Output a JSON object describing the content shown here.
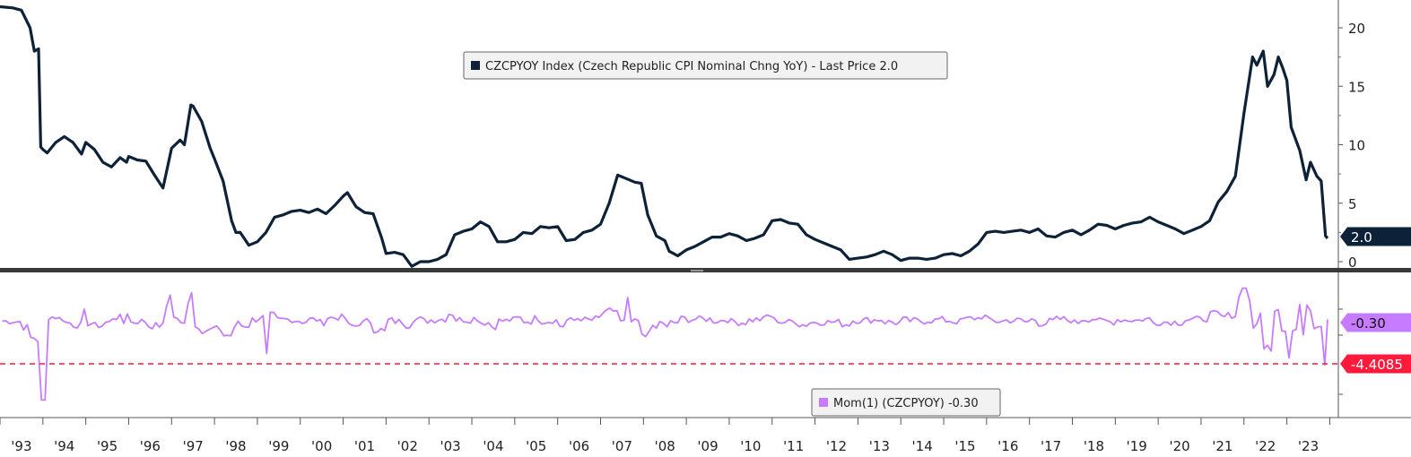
{
  "colors": {
    "cpi_line": "#0d2238",
    "mom_line": "#c77cff",
    "ref_line": "#ff1a3c",
    "tag_cpi_bg": "#0d2238",
    "tag_mom_bg": "#c77cff",
    "tag_ref_bg": "#ff1a3c"
  },
  "chart_data": [
    {
      "type": "line",
      "legend": "CZCPYOY Index (Czech Republic CPI Nominal Chng YoY) - Last Price 2.0",
      "legend_placement": "top-center",
      "last_value_tag": "2.0",
      "y_ticks": [
        0,
        5,
        10,
        15,
        20
      ],
      "ylim": [
        -0.5,
        22.5
      ],
      "xlim": [
        1993.0,
        2024.2
      ],
      "series": [
        {
          "name": "CZCPYOY Index",
          "x": [
            1993.0,
            1993.3,
            1993.5,
            1993.7,
            1993.8,
            1993.9,
            1993.95,
            1994.0,
            1994.1,
            1994.3,
            1994.5,
            1994.7,
            1994.9,
            1995.0,
            1995.2,
            1995.4,
            1995.6,
            1995.8,
            1995.95,
            1996.0,
            1996.2,
            1996.4,
            1996.6,
            1996.8,
            1997.0,
            1997.2,
            1997.3,
            1997.45,
            1997.5,
            1997.7,
            1997.9,
            1998.0,
            1998.2,
            1998.4,
            1998.5,
            1998.6,
            1998.8,
            1999.0,
            1999.2,
            1999.4,
            1999.6,
            1999.8,
            2000.0,
            2000.2,
            2000.4,
            2000.6,
            2000.8,
            2001.0,
            2001.1,
            2001.3,
            2001.5,
            2001.7,
            2001.9,
            2002.0,
            2002.2,
            2002.4,
            2002.6,
            2002.8,
            2003.0,
            2003.2,
            2003.4,
            2003.6,
            2003.8,
            2004.0,
            2004.2,
            2004.4,
            2004.6,
            2004.8,
            2005.0,
            2005.2,
            2005.4,
            2005.6,
            2005.8,
            2006.0,
            2006.2,
            2006.4,
            2006.6,
            2006.8,
            2007.0,
            2007.2,
            2007.4,
            2007.6,
            2007.8,
            2007.95,
            2008.1,
            2008.3,
            2008.5,
            2008.6,
            2008.8,
            2009.0,
            2009.2,
            2009.4,
            2009.6,
            2009.8,
            2010.0,
            2010.2,
            2010.4,
            2010.6,
            2010.8,
            2011.0,
            2011.2,
            2011.4,
            2011.6,
            2011.8,
            2012.0,
            2012.2,
            2012.4,
            2012.6,
            2012.8,
            2013.0,
            2013.2,
            2013.4,
            2013.6,
            2013.8,
            2014.0,
            2014.2,
            2014.4,
            2014.6,
            2014.8,
            2015.0,
            2015.2,
            2015.4,
            2015.6,
            2015.8,
            2016.0,
            2016.2,
            2016.4,
            2016.6,
            2016.8,
            2017.0,
            2017.2,
            2017.4,
            2017.6,
            2017.8,
            2018.0,
            2018.2,
            2018.4,
            2018.6,
            2018.8,
            2019.0,
            2019.2,
            2019.4,
            2019.6,
            2019.8,
            2020.0,
            2020.2,
            2020.4,
            2020.6,
            2020.8,
            2021.0,
            2021.2,
            2021.4,
            2021.6,
            2021.8,
            2022.0,
            2022.2,
            2022.3,
            2022.45,
            2022.55,
            2022.7,
            2022.8,
            2022.9,
            2023.0,
            2023.1,
            2023.3,
            2023.45,
            2023.55,
            2023.7,
            2023.8,
            2023.9,
            2023.95
          ],
          "values": [
            21.8,
            21.7,
            21.5,
            20.0,
            18.0,
            18.2,
            9.8,
            9.6,
            9.3,
            10.2,
            10.7,
            10.2,
            9.2,
            10.2,
            9.6,
            8.5,
            8.1,
            8.9,
            8.5,
            9.0,
            8.7,
            8.6,
            7.4,
            6.3,
            9.7,
            10.4,
            10.0,
            13.4,
            13.3,
            12.0,
            9.7,
            8.8,
            6.9,
            3.5,
            2.5,
            2.5,
            1.4,
            1.7,
            2.5,
            3.8,
            4.0,
            4.3,
            4.4,
            4.2,
            4.5,
            4.1,
            4.8,
            5.6,
            5.9,
            4.7,
            4.2,
            4.1,
            2.0,
            0.7,
            0.8,
            0.6,
            -0.4,
            0.0,
            0.0,
            0.2,
            0.6,
            2.3,
            2.6,
            2.8,
            3.4,
            3.0,
            1.7,
            1.7,
            1.9,
            2.5,
            2.4,
            3.0,
            2.9,
            3.0,
            1.8,
            1.9,
            2.5,
            2.7,
            3.2,
            5.0,
            7.4,
            7.1,
            6.8,
            6.7,
            4.0,
            2.2,
            1.8,
            0.9,
            0.5,
            1.0,
            1.3,
            1.7,
            2.1,
            2.1,
            2.4,
            2.2,
            1.8,
            2.0,
            2.3,
            3.5,
            3.6,
            3.3,
            3.2,
            2.3,
            1.9,
            1.6,
            1.3,
            1.0,
            0.2,
            0.3,
            0.4,
            0.6,
            0.9,
            0.6,
            0.1,
            0.3,
            0.3,
            0.2,
            0.3,
            0.6,
            0.7,
            0.5,
            0.9,
            1.5,
            2.5,
            2.6,
            2.5,
            2.6,
            2.7,
            2.5,
            2.8,
            2.2,
            2.1,
            2.5,
            2.7,
            2.3,
            2.7,
            3.2,
            3.1,
            2.8,
            3.1,
            3.3,
            3.4,
            3.8,
            3.4,
            3.1,
            2.8,
            2.4,
            2.7,
            3.0,
            3.5,
            5.1,
            6.0,
            7.3,
            12.7,
            17.5,
            16.8,
            18.0,
            15.0,
            16.0,
            17.5,
            16.6,
            15.5,
            11.5,
            9.5,
            7.0,
            8.5,
            7.3,
            6.9,
            2.2,
            2.0
          ]
        }
      ]
    },
    {
      "type": "line",
      "legend": "Mom(1) (CZCPYOY) -0.30",
      "legend_placement": "bottom-center",
      "last_value_tag": "-0.30",
      "reference_value_tag": "-4.4085",
      "xlim": [
        1993.0,
        2024.2
      ],
      "x_ticks": [
        "'93",
        "'94",
        "'95",
        "'96",
        "'97",
        "'98",
        "'99",
        "'00",
        "'01",
        "'02",
        "'03",
        "'04",
        "'05",
        "'06",
        "'07",
        "'08",
        "'09",
        "'10",
        "'11",
        "'12",
        "'13",
        "'14",
        "'15",
        "'16",
        "'17",
        "'18",
        "'19",
        "'20",
        "'21",
        "'22",
        "'23"
      ]
    }
  ]
}
